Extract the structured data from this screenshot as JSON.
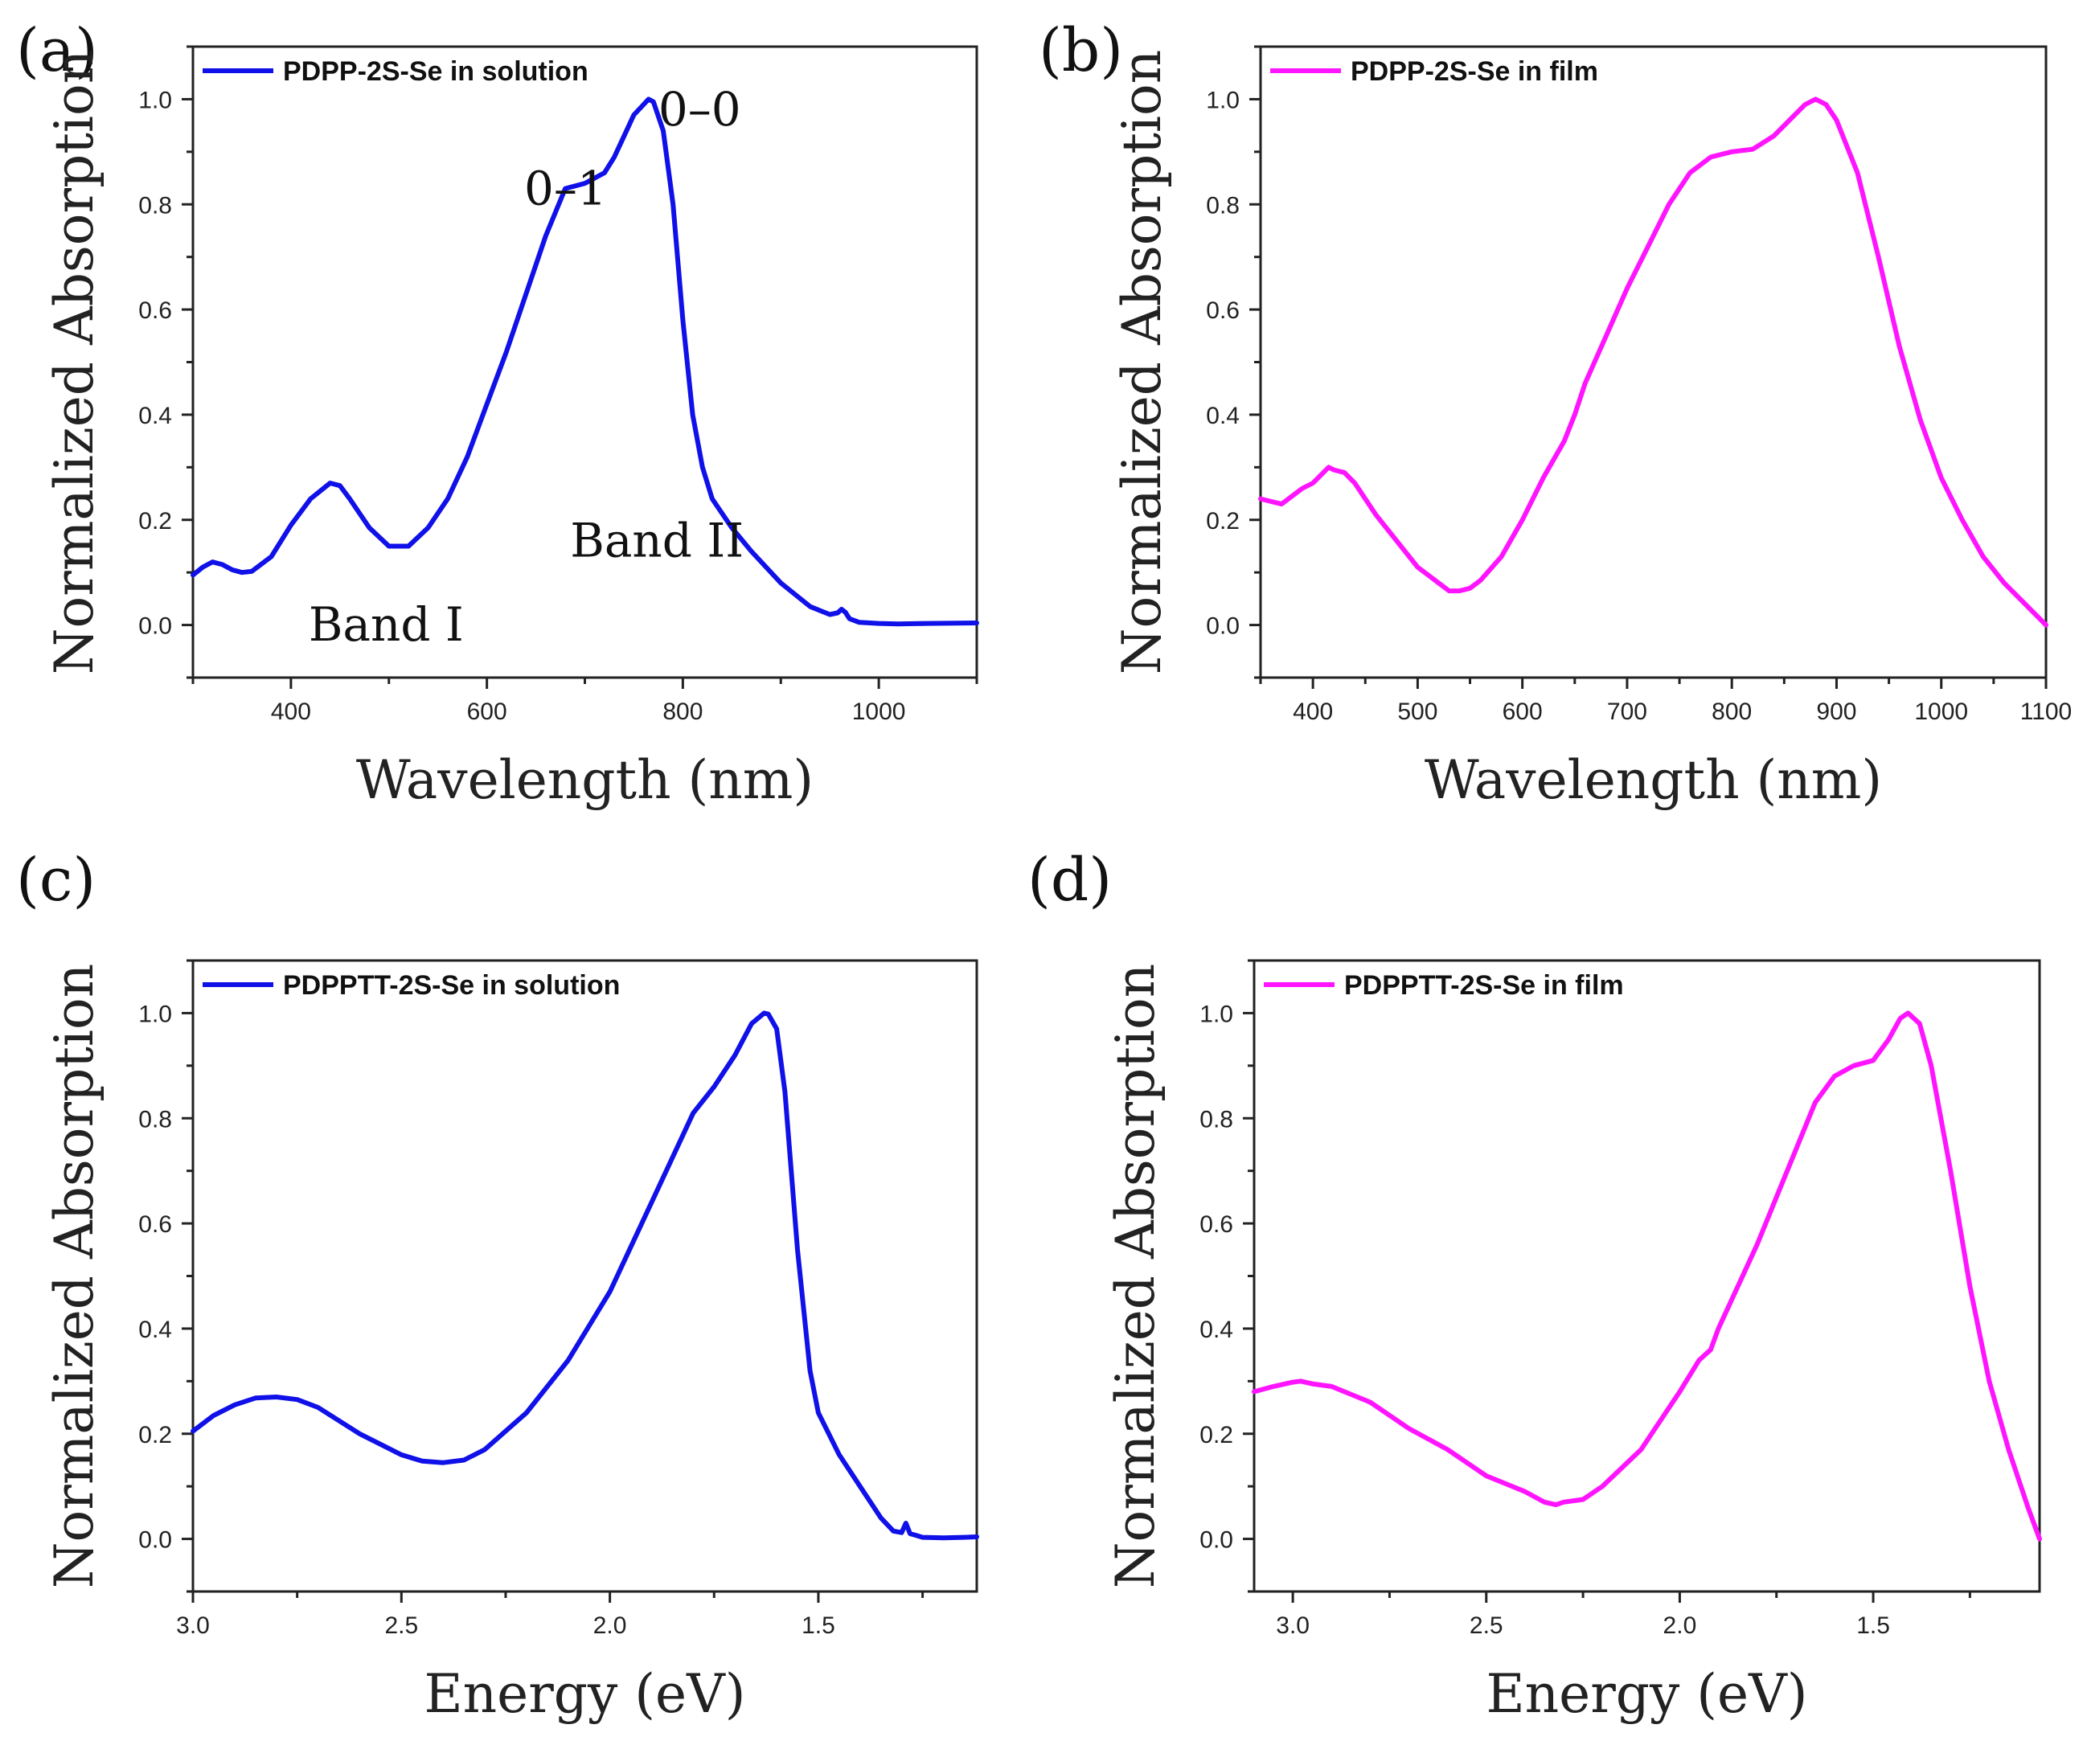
{
  "figure": {
    "panel_labels": [
      "(a)",
      "(b)",
      "(c)",
      "(d)"
    ]
  },
  "chart_data": [
    {
      "type": "line",
      "panel": "(a)",
      "xlabel": "Wavelength (nm)",
      "ylabel": "Normalized Absorption",
      "xlim": [
        300,
        1100
      ],
      "ylim": [
        -0.1,
        1.1
      ],
      "x_reversed": false,
      "xticks": [
        400,
        600,
        800,
        1000
      ],
      "xtick_labels": [
        "400",
        "600",
        "800",
        "1000"
      ],
      "x_minor_step": 100,
      "yticks": [
        0,
        0.2,
        0.4,
        0.6,
        0.8,
        1.0
      ],
      "ytick_labels": [
        "0.0",
        "0.2",
        "0.4",
        "0.6",
        "0.8",
        "1.0"
      ],
      "y_minor_step": 0.1,
      "legend_position": "top-left",
      "series": [
        {
          "name": "PDPP-2S-Se in solution",
          "color": "#1010e8",
          "x": [
            300,
            310,
            320,
            330,
            340,
            350,
            360,
            380,
            400,
            420,
            440,
            450,
            460,
            480,
            500,
            520,
            540,
            560,
            580,
            600,
            620,
            640,
            660,
            680,
            700,
            720,
            730,
            740,
            750,
            760,
            765,
            770,
            780,
            790,
            800,
            810,
            820,
            830,
            850,
            870,
            900,
            930,
            950,
            958,
            962,
            966,
            970,
            980,
            1000,
            1020,
            1050,
            1100
          ],
          "y": [
            0.095,
            0.11,
            0.12,
            0.115,
            0.105,
            0.1,
            0.102,
            0.13,
            0.19,
            0.24,
            0.27,
            0.265,
            0.24,
            0.185,
            0.15,
            0.15,
            0.185,
            0.24,
            0.32,
            0.42,
            0.52,
            0.63,
            0.74,
            0.83,
            0.84,
            0.86,
            0.89,
            0.93,
            0.97,
            0.99,
            1.0,
            0.995,
            0.94,
            0.8,
            0.58,
            0.4,
            0.3,
            0.24,
            0.185,
            0.14,
            0.08,
            0.035,
            0.02,
            0.023,
            0.03,
            0.024,
            0.012,
            0.005,
            0.003,
            0.002,
            0.003,
            0.004
          ]
        }
      ],
      "annotations": [
        {
          "text": "0–0",
          "x": 775,
          "y": 0.95
        },
        {
          "text": "0–1",
          "x": 638,
          "y": 0.8
        },
        {
          "text": "Band II",
          "x": 685,
          "y": 0.13
        },
        {
          "text": "Band I",
          "x": 418,
          "y": -0.03
        }
      ]
    },
    {
      "type": "line",
      "panel": "(b)",
      "xlabel": "Wavelength (nm)",
      "ylabel": "Normalized Absorption",
      "xlim": [
        350,
        1100
      ],
      "ylim": [
        -0.1,
        1.1
      ],
      "x_reversed": false,
      "xticks": [
        400,
        500,
        600,
        700,
        800,
        900,
        1000,
        1100
      ],
      "xtick_labels": [
        "400",
        "500",
        "600",
        "700",
        "800",
        "900",
        "1000",
        "1100"
      ],
      "x_minor_step": 50,
      "yticks": [
        0,
        0.2,
        0.4,
        0.6,
        0.8,
        1.0
      ],
      "ytick_labels": [
        "0.0",
        "0.2",
        "0.4",
        "0.6",
        "0.8",
        "1.0"
      ],
      "y_minor_step": 0.1,
      "legend_position": "top-left",
      "series": [
        {
          "name": "PDPP-2S-Se in film",
          "color": "#ff14ff",
          "x": [
            350,
            360,
            370,
            380,
            390,
            400,
            410,
            415,
            420,
            430,
            440,
            460,
            480,
            500,
            510,
            520,
            530,
            540,
            550,
            560,
            580,
            600,
            620,
            640,
            650,
            660,
            680,
            700,
            720,
            740,
            760,
            780,
            800,
            820,
            840,
            860,
            870,
            880,
            890,
            900,
            920,
            940,
            960,
            980,
            1000,
            1020,
            1040,
            1060,
            1080,
            1100
          ],
          "y": [
            0.24,
            0.235,
            0.23,
            0.245,
            0.26,
            0.27,
            0.29,
            0.3,
            0.295,
            0.29,
            0.27,
            0.21,
            0.16,
            0.11,
            0.095,
            0.08,
            0.065,
            0.065,
            0.07,
            0.085,
            0.13,
            0.2,
            0.28,
            0.35,
            0.4,
            0.46,
            0.55,
            0.64,
            0.72,
            0.8,
            0.86,
            0.89,
            0.9,
            0.905,
            0.93,
            0.97,
            0.99,
            1.0,
            0.99,
            0.96,
            0.86,
            0.7,
            0.53,
            0.39,
            0.28,
            0.2,
            0.13,
            0.08,
            0.04,
            0.0
          ]
        }
      ],
      "annotations": []
    },
    {
      "type": "line",
      "panel": "(c)",
      "xlabel": "Energy (eV)",
      "ylabel": "Normalized Absorption",
      "xlim": [
        3.0,
        1.12
      ],
      "ylim": [
        -0.1,
        1.1
      ],
      "x_reversed": true,
      "xticks": [
        3.0,
        2.5,
        2.0,
        1.5
      ],
      "xtick_labels": [
        "3.0",
        "2.5",
        "2.0",
        "1.5"
      ],
      "x_minor_step": 0.25,
      "yticks": [
        0,
        0.2,
        0.4,
        0.6,
        0.8,
        1.0
      ],
      "ytick_labels": [
        "0.0",
        "0.2",
        "0.4",
        "0.6",
        "0.8",
        "1.0"
      ],
      "y_minor_step": 0.1,
      "legend_position": "top-left",
      "series": [
        {
          "name": "PDPPTT-2S-Se in solution",
          "color": "#1010e8",
          "x": [
            3.0,
            2.95,
            2.9,
            2.85,
            2.8,
            2.75,
            2.7,
            2.6,
            2.5,
            2.45,
            2.4,
            2.35,
            2.3,
            2.2,
            2.1,
            2.0,
            1.9,
            1.8,
            1.75,
            1.7,
            1.66,
            1.63,
            1.62,
            1.6,
            1.58,
            1.55,
            1.52,
            1.5,
            1.45,
            1.4,
            1.35,
            1.32,
            1.3,
            1.29,
            1.28,
            1.25,
            1.2,
            1.15,
            1.12
          ],
          "y": [
            0.205,
            0.235,
            0.255,
            0.268,
            0.27,
            0.265,
            0.25,
            0.2,
            0.16,
            0.148,
            0.145,
            0.15,
            0.17,
            0.24,
            0.34,
            0.47,
            0.64,
            0.81,
            0.86,
            0.92,
            0.98,
            1.0,
            0.998,
            0.97,
            0.85,
            0.55,
            0.32,
            0.24,
            0.16,
            0.1,
            0.04,
            0.015,
            0.012,
            0.03,
            0.01,
            0.003,
            0.002,
            0.003,
            0.004
          ]
        }
      ],
      "annotations": []
    },
    {
      "type": "line",
      "panel": "(d)",
      "xlabel": "Energy (eV)",
      "ylabel": "Normalized Absorption",
      "xlim": [
        3.1,
        1.07
      ],
      "ylim": [
        -0.1,
        1.1
      ],
      "x_reversed": true,
      "xticks": [
        3.0,
        2.5,
        2.0,
        1.5
      ],
      "xtick_labels": [
        "3.0",
        "2.5",
        "2.0",
        "1.5"
      ],
      "x_minor_step": 0.25,
      "yticks": [
        0,
        0.2,
        0.4,
        0.6,
        0.8,
        1.0
      ],
      "ytick_labels": [
        "0.0",
        "0.2",
        "0.4",
        "0.6",
        "0.8",
        "1.0"
      ],
      "y_minor_step": 0.1,
      "legend_position": "top-left",
      "series": [
        {
          "name": "PDPPTT-2S-Se in film",
          "color": "#ff14ff",
          "x": [
            3.1,
            3.05,
            3.0,
            2.98,
            2.95,
            2.9,
            2.8,
            2.7,
            2.6,
            2.5,
            2.45,
            2.4,
            2.35,
            2.32,
            2.3,
            2.25,
            2.2,
            2.1,
            2.0,
            1.95,
            1.92,
            1.9,
            1.85,
            1.8,
            1.75,
            1.7,
            1.65,
            1.6,
            1.55,
            1.5,
            1.46,
            1.43,
            1.41,
            1.38,
            1.35,
            1.3,
            1.25,
            1.2,
            1.15,
            1.1,
            1.07
          ],
          "y": [
            0.28,
            0.29,
            0.298,
            0.3,
            0.295,
            0.29,
            0.26,
            0.21,
            0.17,
            0.12,
            0.105,
            0.09,
            0.07,
            0.065,
            0.07,
            0.075,
            0.1,
            0.17,
            0.28,
            0.34,
            0.36,
            0.4,
            0.48,
            0.56,
            0.65,
            0.74,
            0.83,
            0.88,
            0.9,
            0.91,
            0.95,
            0.99,
            1.0,
            0.98,
            0.9,
            0.7,
            0.48,
            0.3,
            0.17,
            0.06,
            0.0
          ]
        }
      ],
      "annotations": []
    }
  ]
}
